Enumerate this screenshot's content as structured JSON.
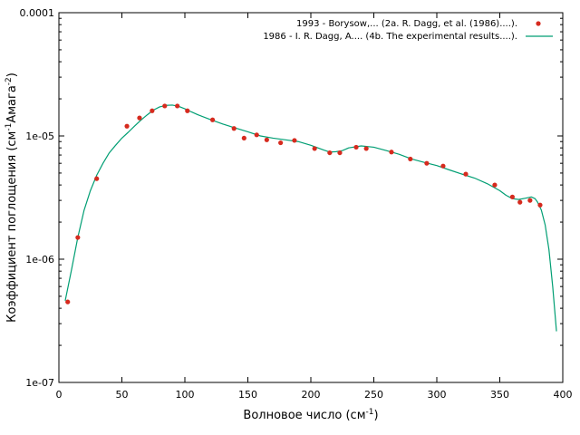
{
  "chart_data": {
    "type": "scatter",
    "xlabel": "Волновое число (см",
    "xlabel_sup": "-1",
    "xlabel_tail": ")",
    "ylabel_parts": [
      "Коэффициент поглощения (см",
      "-1",
      "Амага",
      "-2",
      ")"
    ],
    "xlim": [
      0,
      400
    ],
    "ylim": [
      1e-07,
      0.0001
    ],
    "yscale": "log",
    "x_ticks": [
      0,
      50,
      100,
      150,
      200,
      250,
      300,
      350,
      400
    ],
    "x_tick_labels": [
      "0",
      "50",
      "100",
      "150",
      "200",
      "250",
      "300",
      "350",
      "400"
    ],
    "y_ticks": [
      1e-07,
      1e-06,
      1e-05,
      0.0001
    ],
    "y_tick_labels": [
      "1e-07",
      "1e-06",
      "1e-05",
      "0.0001"
    ],
    "grid": false,
    "legend_position": "top-right",
    "series": [
      {
        "name": "1993 - Borysow,... (2a. R. Dagg, et al. (1986)....).",
        "style": "points",
        "color": "#d62a1e",
        "x": [
          7,
          15,
          30,
          54,
          64,
          74,
          84,
          94,
          102,
          122,
          139,
          147,
          157,
          165,
          176,
          187,
          203,
          215,
          223,
          236,
          244,
          264,
          279,
          292,
          305,
          323,
          346,
          360,
          366,
          374,
          382
        ],
        "y": [
          4.5e-07,
          1.5e-06,
          4.5e-06,
          1.2e-05,
          1.4e-05,
          1.6e-05,
          1.75e-05,
          1.75e-05,
          1.6e-05,
          1.35e-05,
          1.15e-05,
          9.6e-06,
          1.02e-05,
          9.3e-06,
          8.8e-06,
          9.2e-06,
          7.9e-06,
          7.3e-06,
          7.3e-06,
          8.1e-06,
          7.9e-06,
          7.4e-06,
          6.5e-06,
          6e-06,
          5.7e-06,
          4.9e-06,
          4e-06,
          3.2e-06,
          2.9e-06,
          3e-06,
          2.75e-06
        ]
      },
      {
        "name": "1986 - I. R. Dagg, A.... (4b. The experimental  results....).",
        "style": "line",
        "color": "#009e73",
        "x": [
          5,
          10,
          15,
          20,
          25,
          30,
          35,
          40,
          45,
          50,
          55,
          60,
          65,
          70,
          75,
          80,
          85,
          90,
          95,
          100,
          105,
          110,
          120,
          130,
          140,
          150,
          160,
          170,
          180,
          190,
          200,
          210,
          215,
          220,
          225,
          230,
          240,
          250,
          260,
          270,
          280,
          290,
          300,
          310,
          320,
          330,
          340,
          350,
          355,
          360,
          365,
          370,
          375,
          378,
          380,
          383,
          386,
          389,
          392,
          395
        ],
        "y": [
          4.6e-07,
          8.2e-07,
          1.5e-06,
          2.5e-06,
          3.6e-06,
          4.8e-06,
          6e-06,
          7.3e-06,
          8.4e-06,
          9.6e-06,
          1.07e-05,
          1.2e-05,
          1.34e-05,
          1.48e-05,
          1.62e-05,
          1.72e-05,
          1.77e-05,
          1.78e-05,
          1.74e-05,
          1.66e-05,
          1.57e-05,
          1.49e-05,
          1.36e-05,
          1.25e-05,
          1.16e-05,
          1.08e-05,
          1e-05,
          9.6e-06,
          9.3e-06,
          9e-06,
          8.4e-06,
          7.7e-06,
          7.4e-06,
          7.45e-06,
          7.6e-06,
          8e-06,
          8.3e-06,
          8.1e-06,
          7.6e-06,
          7.1e-06,
          6.5e-06,
          6.1e-06,
          5.75e-06,
          5.3e-06,
          4.9e-06,
          4.55e-06,
          4.1e-06,
          3.6e-06,
          3.3e-06,
          3.1e-06,
          3.05e-06,
          3.12e-06,
          3.2e-06,
          3.1e-06,
          2.9e-06,
          2.5e-06,
          1.9e-06,
          1.2e-06,
          6e-07,
          2.6e-07
        ]
      }
    ]
  }
}
